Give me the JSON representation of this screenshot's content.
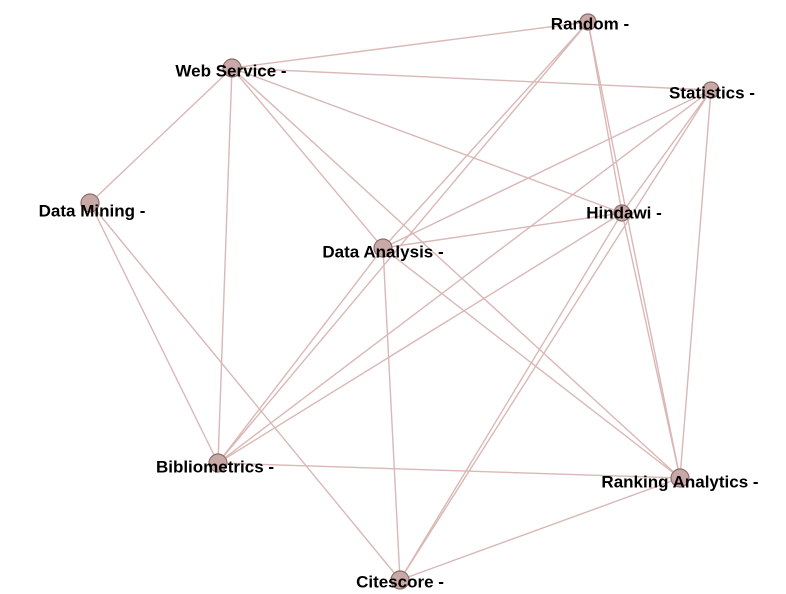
{
  "nodes": [
    {
      "label": "Random -"
    },
    {
      "label": "Web Service -"
    },
    {
      "label": "Statistics -"
    },
    {
      "label": "Data Mining -"
    },
    {
      "label": "Hindawi -"
    },
    {
      "label": "Data Analysis -"
    },
    {
      "label": "Bibliometrics -"
    },
    {
      "label": "Ranking Analytics -"
    },
    {
      "label": "Citescore -"
    }
  ]
}
